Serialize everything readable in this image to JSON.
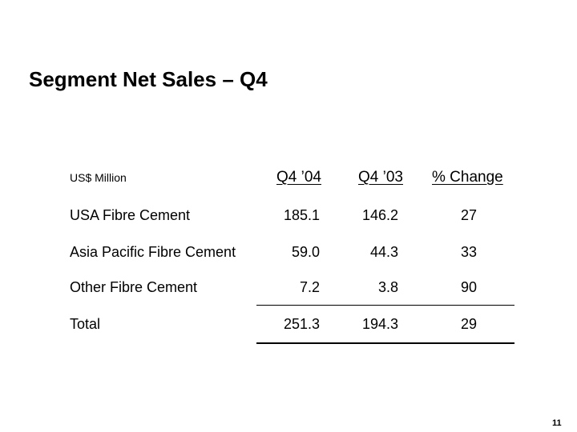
{
  "slide": {
    "title": "Segment Net Sales – Q4",
    "page_number": "11"
  },
  "table": {
    "units_label": "US$ Million",
    "columns": [
      "Q4 ’04",
      "Q4 ’03",
      "% Change"
    ],
    "rows": [
      {
        "label": "USA Fibre Cement",
        "values": [
          "185.1",
          "146.2",
          "27"
        ]
      },
      {
        "label": "Asia Pacific Fibre Cement",
        "values": [
          "59.0",
          "44.3",
          "33"
        ]
      },
      {
        "label": "Other Fibre Cement",
        "values": [
          "7.2",
          "3.8",
          "90"
        ]
      },
      {
        "label": "Total",
        "values": [
          "251.3",
          "194.3",
          "29"
        ]
      }
    ]
  }
}
